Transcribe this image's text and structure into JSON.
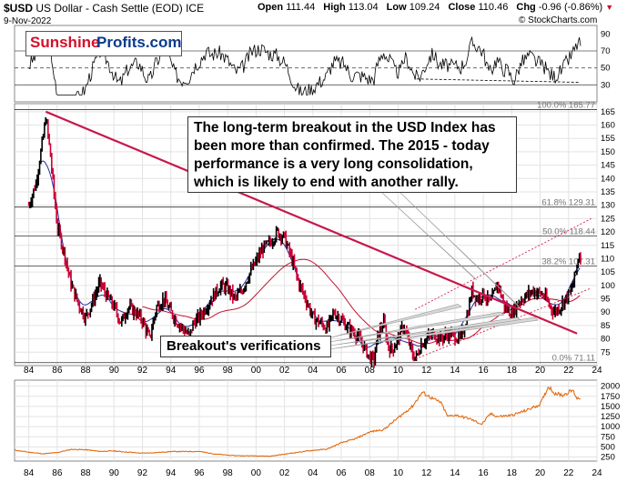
{
  "header": {
    "symbol": "$USD",
    "name": "US Dollar - Cash Settle (EOD)",
    "exchange": "ICE",
    "date": "9-Nov-2022",
    "open_label": "Open",
    "open": "111.44",
    "high_label": "High",
    "high": "113.04",
    "low_label": "Low",
    "low": "109.24",
    "close_label": "Close",
    "close": "110.46",
    "chg_label": "Chg",
    "chg": "-0.96 (-0.86%)",
    "watermark": "© StockCharts.com"
  },
  "logo": {
    "part1": "Sunshine",
    "part2": "Profits.com"
  },
  "annotations": {
    "main_line1": "The long-term breakout in the USD Index has",
    "main_line2": "been more than confirmed. The 2015 - today",
    "main_line3": "performance is a very long consolidation,",
    "main_line4": "which is likely to end with another rally.",
    "verifications": "Breakout's verifications"
  },
  "colors": {
    "price_up": "#000000",
    "price_down": "#cc0033",
    "ma_short": "#1f2aa6",
    "ma_long": "#c4122f",
    "trendline": "#c8174a",
    "channel": "#d21e4a",
    "gold": "#e26b12",
    "grid": "#e3e3e3"
  },
  "chart_data": [
    {
      "type": "line",
      "panel": "rsi",
      "y_ticks": [
        "90",
        "70",
        "50",
        "30"
      ],
      "ylim": [
        10,
        100
      ],
      "reference_lines": [
        30,
        50,
        70
      ]
    },
    {
      "type": "line",
      "panel": "price",
      "series": [
        {
          "name": "$USD",
          "x": [
            1984.0,
            1984.5,
            1985.0,
            1985.2,
            1985.5,
            1986.0,
            1986.5,
            1987.0,
            1987.5,
            1988.0,
            1988.5,
            1989.0,
            1989.5,
            1990.0,
            1990.5,
            1991.0,
            1991.5,
            1992.0,
            1992.5,
            1993.0,
            1993.5,
            1994.0,
            1994.5,
            1995.0,
            1995.3,
            1995.6,
            1996.0,
            1996.5,
            1997.0,
            1997.5,
            1998.0,
            1998.5,
            1999.0,
            1999.5,
            2000.0,
            2000.5,
            2001.0,
            2001.5,
            2002.0,
            2002.5,
            2003.0,
            2003.5,
            2004.0,
            2004.5,
            2005.0,
            2005.5,
            2006.0,
            2006.5,
            2007.0,
            2007.5,
            2008.0,
            2008.3,
            2008.6,
            2009.0,
            2009.3,
            2009.6,
            2010.0,
            2010.4,
            2010.8,
            2011.0,
            2011.3,
            2011.6,
            2012.0,
            2012.5,
            2013.0,
            2013.5,
            2014.0,
            2014.4,
            2014.8,
            2015.2,
            2015.6,
            2016.0,
            2016.5,
            2017.0,
            2017.5,
            2018.0,
            2018.5,
            2019.0,
            2019.5,
            2020.0,
            2020.3,
            2020.6,
            2021.0,
            2021.4,
            2021.8,
            2022.2,
            2022.5,
            2022.75,
            2022.86
          ],
          "values": [
            130,
            138,
            155,
            163,
            150,
            122,
            112,
            100,
            93,
            88,
            94,
            101,
            96,
            92,
            86,
            92,
            90,
            87,
            80,
            92,
            95,
            90,
            86,
            83,
            81,
            86,
            88,
            92,
            96,
            100,
            99,
            95,
            98,
            104,
            109,
            114,
            116,
            120,
            118,
            110,
            101,
            95,
            88,
            86,
            84,
            90,
            87,
            84,
            82,
            78,
            73,
            72,
            82,
            86,
            77,
            76,
            80,
            85,
            78,
            74,
            73,
            78,
            80,
            82,
            80,
            82,
            81,
            80,
            87,
            98,
            95,
            97,
            93,
            101,
            92,
            89,
            94,
            96,
            98,
            97,
            96,
            93,
            90,
            92,
            95,
            98,
            105,
            112,
            110
          ]
        }
      ],
      "xlim": [
        1983,
        2024
      ],
      "ylim": [
        70,
        168
      ],
      "x_tick_labels": [
        "84",
        "86",
        "88",
        "90",
        "92",
        "94",
        "96",
        "98",
        "00",
        "02",
        "04",
        "06",
        "08",
        "10",
        "12",
        "14",
        "16",
        "18",
        "20",
        "22",
        "24"
      ],
      "y_tick_labels": [
        "165",
        "160",
        "155",
        "150",
        "145",
        "140",
        "135",
        "130",
        "125",
        "120",
        "115",
        "110",
        "105",
        "100",
        "95",
        "90",
        "85",
        "80",
        "75"
      ],
      "fibonacci": [
        {
          "label": "100.0% 165.77",
          "value": 165.77
        },
        {
          "label": "61.8% 129.31",
          "value": 129.31
        },
        {
          "label": "50.0% 118.44",
          "value": 118.44
        },
        {
          "label": "38.2% 107.31",
          "value": 107.31
        },
        {
          "label": "0.0% 71.11",
          "value": 71.11
        }
      ]
    },
    {
      "type": "line",
      "panel": "gold",
      "series": [
        {
          "name": "gold",
          "x": [
            1983.0,
            1984.0,
            1985.0,
            1986.0,
            1987.0,
            1988.0,
            1989.0,
            1990.0,
            1991.0,
            1992.0,
            1993.0,
            1994.0,
            1995.0,
            1996.0,
            1997.0,
            1998.0,
            1999.0,
            2000.0,
            2001.0,
            2002.0,
            2003.0,
            2004.0,
            2005.0,
            2006.0,
            2007.0,
            2008.0,
            2009.0,
            2010.0,
            2011.0,
            2011.7,
            2012.5,
            2013.0,
            2013.5,
            2014.0,
            2015.0,
            2015.9,
            2016.5,
            2017.0,
            2018.0,
            2019.0,
            2020.0,
            2020.6,
            2021.0,
            2021.6,
            2022.0,
            2022.3,
            2022.6,
            2022.86
          ],
          "values": [
            420,
            370,
            330,
            360,
            440,
            430,
            390,
            400,
            370,
            345,
            360,
            385,
            385,
            390,
            330,
            295,
            280,
            280,
            270,
            320,
            370,
            415,
            445,
            600,
            700,
            870,
            930,
            1220,
            1500,
            1850,
            1680,
            1600,
            1250,
            1290,
            1200,
            1060,
            1320,
            1250,
            1280,
            1400,
            1550,
            2000,
            1830,
            1780,
            1850,
            1900,
            1700,
            1710
          ]
        }
      ],
      "xlim": [
        1983,
        2024
      ],
      "ylim": [
        150,
        2150
      ],
      "y_tick_labels": [
        "2000",
        "1750",
        "1500",
        "1250",
        "1000",
        "750",
        "500",
        "250"
      ]
    }
  ]
}
